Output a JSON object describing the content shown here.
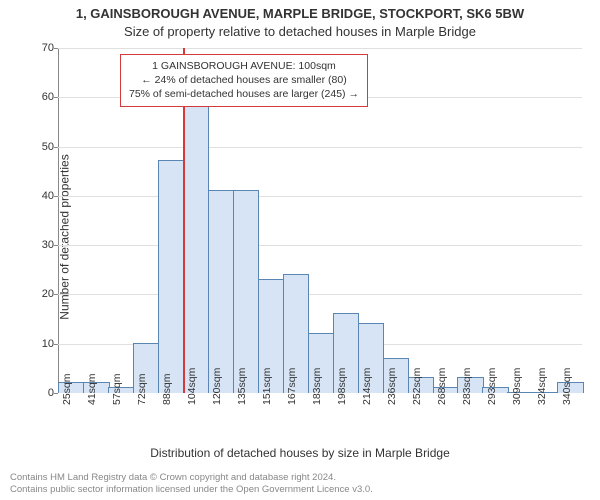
{
  "title_line1": "1, GAINSBOROUGH AVENUE, MARPLE BRIDGE, STOCKPORT, SK6 5BW",
  "title_line2": "Size of property relative to detached houses in Marple Bridge",
  "y_axis_label": "Number of detached properties",
  "x_axis_label": "Distribution of detached houses by size in Marple Bridge",
  "footer_line1": "Contains HM Land Registry data © Crown copyright and database right 2024.",
  "footer_line2": "Contains public sector information licensed under the Open Government Licence v3.0.",
  "chart": {
    "type": "bar",
    "background_color": "#ffffff",
    "grid_color": "#e0e0e0",
    "axis_color": "#888888",
    "ylim": [
      0,
      70
    ],
    "ytick_step": 10,
    "yticks": [
      0,
      10,
      20,
      30,
      40,
      50,
      60,
      70
    ],
    "categories": [
      "25sqm",
      "41sqm",
      "57sqm",
      "72sqm",
      "88sqm",
      "104sqm",
      "120sqm",
      "135sqm",
      "151sqm",
      "167sqm",
      "183sqm",
      "198sqm",
      "214sqm",
      "236sqm",
      "252sqm",
      "268sqm",
      "283sqm",
      "293sqm",
      "309sqm",
      "324sqm",
      "340sqm"
    ],
    "values": [
      2,
      2,
      1,
      10,
      47,
      60,
      41,
      41,
      23,
      24,
      12,
      16,
      14,
      7,
      3,
      1,
      3,
      1,
      0,
      0,
      2
    ],
    "bar_fill": "#d6e4f5",
    "bar_border": "#5a86b3",
    "bar_width_ratio": 0.98,
    "highlight": {
      "position_index": 5.0,
      "line_color": "#d43a3a",
      "line_width": 2
    },
    "info_box": {
      "line1": "1 GAINSBOROUGH AVENUE: 100sqm",
      "line2": "← 24% of detached houses are smaller (80)",
      "line3": "75% of semi-detached houses are larger (245) →",
      "border_color": "#d43a3a",
      "background_color": "#ffffff",
      "text_color": "#333333",
      "fontsize": 10.5
    }
  }
}
